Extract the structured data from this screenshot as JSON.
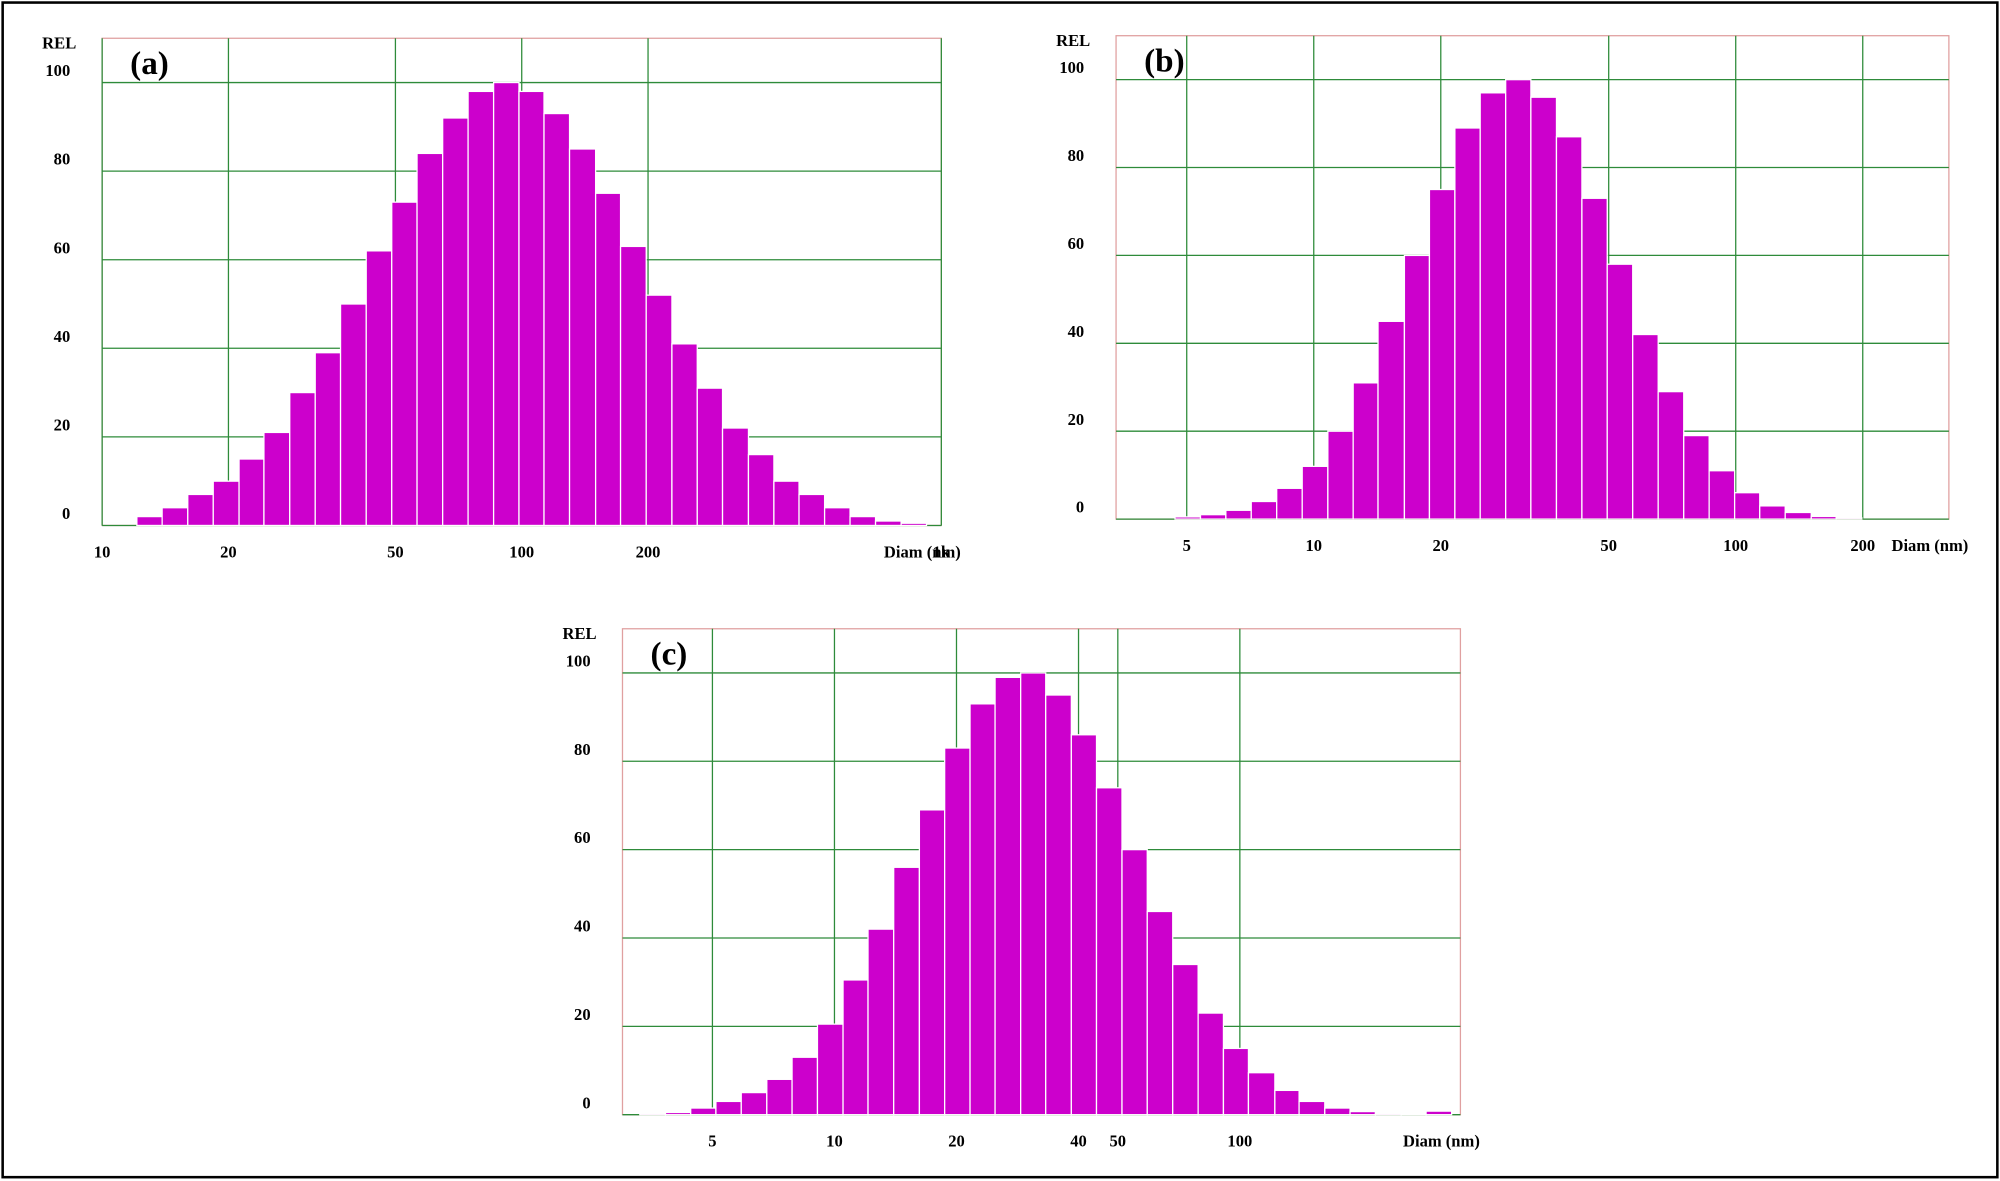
{
  "chart_data": [
    {
      "type": "histogram",
      "title": "(a)",
      "y_label": "REL",
      "x_label": "Diam (nm)",
      "color": "#cc00cc",
      "xscale": "log",
      "grid": true,
      "xlim": [
        10,
        1000
      ],
      "xticks": [
        10,
        20,
        50,
        100,
        200,
        {
          "value": 1000,
          "label": "1k"
        }
      ],
      "ylim": [
        0,
        110
      ],
      "yticks": [
        0,
        20,
        40,
        60,
        80,
        100
      ],
      "bins": [
        12.1,
        13.9,
        16.0,
        18.4,
        21.2,
        24.3,
        28.0,
        32.2,
        37.0,
        42.6,
        49.0,
        56.3,
        64.8,
        74.5,
        85.7,
        98.5,
        113,
        130,
        150,
        172,
        198,
        228,
        262,
        301,
        347,
        399,
        458,
        527,
        606,
        697,
        802,
        922
      ],
      "values": [
        2,
        4,
        7,
        10,
        15,
        21,
        30,
        39,
        50,
        62,
        73,
        84,
        92,
        98,
        100,
        98,
        93,
        85,
        75,
        63,
        52,
        41,
        31,
        22,
        16,
        10,
        7,
        4,
        2,
        1,
        0.5
      ]
    },
    {
      "type": "histogram",
      "title": "(b)",
      "y_label": "REL",
      "x_label": "Diam (nm)",
      "color": "#cc00cc",
      "xscale": "log",
      "grid": true,
      "xlim": [
        3.4,
        320
      ],
      "xticks": [
        5,
        10,
        20,
        50,
        100,
        200
      ],
      "ylim": [
        0,
        110
      ],
      "yticks": [
        0,
        20,
        40,
        60,
        80,
        100
      ],
      "bins": [
        4.69,
        5.39,
        6.19,
        7.11,
        8.17,
        9.39,
        10.8,
        12.4,
        14.2,
        16.4,
        18.8,
        21.6,
        24.8,
        28.5,
        32.7,
        37.6,
        43.2,
        49.6,
        57.0,
        65.5,
        75.3,
        86.5,
        99.4,
        114,
        131,
        151,
        173,
        199
      ],
      "values": [
        0.5,
        1,
        2,
        4,
        7,
        12,
        20,
        31,
        45,
        60,
        75,
        89,
        97,
        100,
        96,
        87,
        73,
        58,
        42,
        29,
        19,
        11,
        6,
        3,
        1.5,
        0.6,
        0.3
      ]
    },
    {
      "type": "histogram",
      "title": "(c)",
      "y_label": "REL",
      "x_label": "Diam (nm)",
      "color": "#cc00cc",
      "xscale": "log",
      "grid": true,
      "xlim": [
        3,
        350
      ],
      "xticks": [
        5,
        10,
        20,
        40,
        50,
        100
      ],
      "ylim": [
        0,
        110
      ],
      "yticks": [
        0,
        20,
        40,
        60,
        80,
        100
      ],
      "bins": [
        3.31,
        3.83,
        4.42,
        5.1,
        5.89,
        6.81,
        7.86,
        9.08,
        10.5,
        12.1,
        14.0,
        16.2,
        18.7,
        21.6,
        24.9,
        28.8,
        33.2,
        38.4,
        44.3,
        51.2,
        59.1,
        68.3,
        78.9,
        91.1,
        105,
        122,
        140,
        162,
        187,
        216,
        250,
        288,
        333
      ],
      "values": [
        0.3,
        0.5,
        1.5,
        3,
        5,
        8,
        13,
        20.5,
        30.5,
        42,
        56,
        69,
        83,
        93,
        99,
        100,
        95,
        86,
        74,
        60,
        46,
        34,
        23,
        15,
        9.5,
        5.5,
        3,
        1.5,
        0.7,
        0.3,
        0.2,
        0.8
      ]
    }
  ]
}
